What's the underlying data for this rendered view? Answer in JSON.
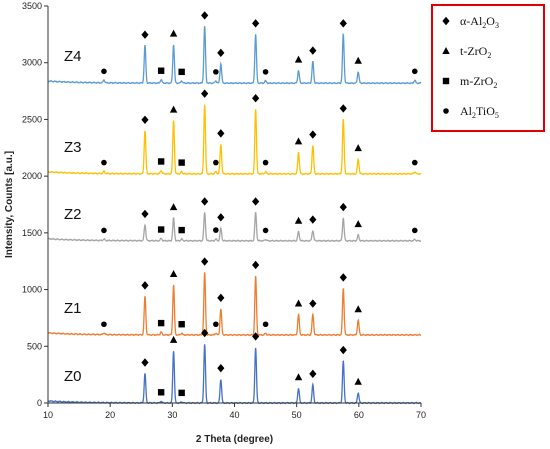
{
  "chart_data": {
    "type": "line",
    "xlabel": "2 Theta (degree)",
    "ylabel": "Intensity, Counts [a.u.]",
    "xlim": [
      10,
      70
    ],
    "ylim": [
      0,
      3500
    ],
    "xticks": [
      "10",
      "20",
      "30",
      "40",
      "50",
      "60",
      "70"
    ],
    "yticks": [
      "0",
      "500",
      "1000",
      "1500",
      "2000",
      "2500",
      "3000",
      "3500"
    ],
    "grid": false,
    "legend_position": "top-right",
    "legend": [
      {
        "symbol": "diamond",
        "base": "α-Al",
        "sub1": "2",
        "mid": "O",
        "sub2": "3"
      },
      {
        "symbol": "triangle",
        "base": "t-ZrO",
        "sub1": "2",
        "mid": "",
        "sub2": ""
      },
      {
        "symbol": "square",
        "base": "m-ZrO",
        "sub1": "2",
        "mid": "",
        "sub2": ""
      },
      {
        "symbol": "circle",
        "base": "Al",
        "sub1": "2",
        "mid": "TiO",
        "sub2": "5"
      }
    ],
    "series": [
      {
        "name": "Z0",
        "color": "#4472C4",
        "baseline": 0,
        "peaks": [
          {
            "x": 25.6,
            "h": 260,
            "m": "diamond"
          },
          {
            "x": 28.2,
            "h": 15,
            "m": "square"
          },
          {
            "x": 30.2,
            "h": 460,
            "m": "triangle"
          },
          {
            "x": 31.5,
            "h": 10,
            "m": "square"
          },
          {
            "x": 35.2,
            "h": 520,
            "m": "diamond"
          },
          {
            "x": 37.8,
            "h": 210,
            "m": "diamond"
          },
          {
            "x": 43.4,
            "h": 490,
            "m": "diamond"
          },
          {
            "x": 50.3,
            "h": 130,
            "m": "triangle"
          },
          {
            "x": 52.6,
            "h": 160,
            "m": "diamond"
          },
          {
            "x": 57.5,
            "h": 370,
            "m": "diamond"
          },
          {
            "x": 59.9,
            "h": 90,
            "m": "triangle"
          }
        ]
      },
      {
        "name": "Z1",
        "color": "#ED7D31",
        "baseline": 600,
        "peaks": [
          {
            "x": 19.0,
            "h": 15,
            "m": "circle"
          },
          {
            "x": 25.6,
            "h": 340,
            "m": "diamond"
          },
          {
            "x": 28.2,
            "h": 25,
            "m": "square"
          },
          {
            "x": 30.2,
            "h": 440,
            "m": "triangle"
          },
          {
            "x": 31.5,
            "h": 15,
            "m": "square"
          },
          {
            "x": 35.2,
            "h": 550,
            "m": "diamond"
          },
          {
            "x": 37.0,
            "h": 15,
            "m": "circle"
          },
          {
            "x": 37.8,
            "h": 230,
            "m": "diamond"
          },
          {
            "x": 43.4,
            "h": 520,
            "m": "diamond"
          },
          {
            "x": 45.0,
            "h": 15,
            "m": "circle"
          },
          {
            "x": 50.3,
            "h": 180,
            "m": "triangle"
          },
          {
            "x": 52.6,
            "h": 180,
            "m": "diamond"
          },
          {
            "x": 57.5,
            "h": 410,
            "m": "diamond"
          },
          {
            "x": 59.9,
            "h": 130,
            "m": "triangle"
          }
        ]
      },
      {
        "name": "Z2",
        "color": "#A5A5A5",
        "baseline": 1430,
        "peaks": [
          {
            "x": 19.0,
            "h": 12,
            "m": "circle"
          },
          {
            "x": 25.6,
            "h": 140,
            "m": "diamond"
          },
          {
            "x": 28.2,
            "h": 20,
            "m": "square"
          },
          {
            "x": 30.2,
            "h": 200,
            "m": "triangle"
          },
          {
            "x": 31.5,
            "h": 15,
            "m": "square"
          },
          {
            "x": 35.2,
            "h": 250,
            "m": "diamond"
          },
          {
            "x": 37.0,
            "h": 15,
            "m": "circle"
          },
          {
            "x": 37.8,
            "h": 110,
            "m": "diamond"
          },
          {
            "x": 43.4,
            "h": 250,
            "m": "diamond"
          },
          {
            "x": 45.0,
            "h": 12,
            "m": "circle"
          },
          {
            "x": 50.3,
            "h": 80,
            "m": "triangle"
          },
          {
            "x": 52.6,
            "h": 90,
            "m": "diamond"
          },
          {
            "x": 57.5,
            "h": 200,
            "m": "diamond"
          },
          {
            "x": 59.9,
            "h": 50,
            "m": "triangle"
          },
          {
            "x": 69.0,
            "h": 12,
            "m": "circle"
          }
        ]
      },
      {
        "name": "Z3",
        "color": "#FFC000",
        "baseline": 2020,
        "peaks": [
          {
            "x": 19.0,
            "h": 20,
            "m": "circle"
          },
          {
            "x": 25.6,
            "h": 380,
            "m": "diamond"
          },
          {
            "x": 28.2,
            "h": 30,
            "m": "square"
          },
          {
            "x": 30.2,
            "h": 470,
            "m": "triangle"
          },
          {
            "x": 31.5,
            "h": 20,
            "m": "square"
          },
          {
            "x": 35.2,
            "h": 610,
            "m": "diamond"
          },
          {
            "x": 37.0,
            "h": 20,
            "m": "circle"
          },
          {
            "x": 37.8,
            "h": 260,
            "m": "diamond"
          },
          {
            "x": 43.4,
            "h": 570,
            "m": "diamond"
          },
          {
            "x": 45.0,
            "h": 20,
            "m": "circle"
          },
          {
            "x": 50.3,
            "h": 190,
            "m": "triangle"
          },
          {
            "x": 52.6,
            "h": 250,
            "m": "diamond"
          },
          {
            "x": 57.5,
            "h": 480,
            "m": "diamond"
          },
          {
            "x": 59.9,
            "h": 130,
            "m": "triangle"
          },
          {
            "x": 69.0,
            "h": 20,
            "m": "circle"
          }
        ]
      },
      {
        "name": "Z4",
        "color": "#5B9BD5",
        "baseline": 2820,
        "peaks": [
          {
            "x": 19.0,
            "h": 25,
            "m": "circle"
          },
          {
            "x": 25.6,
            "h": 330,
            "m": "diamond"
          },
          {
            "x": 28.2,
            "h": 30,
            "m": "square"
          },
          {
            "x": 30.2,
            "h": 340,
            "m": "triangle"
          },
          {
            "x": 31.5,
            "h": 20,
            "m": "square"
          },
          {
            "x": 35.2,
            "h": 500,
            "m": "diamond"
          },
          {
            "x": 37.0,
            "h": 20,
            "m": "circle"
          },
          {
            "x": 37.8,
            "h": 170,
            "m": "diamond"
          },
          {
            "x": 43.4,
            "h": 430,
            "m": "diamond"
          },
          {
            "x": 45.0,
            "h": 20,
            "m": "circle"
          },
          {
            "x": 50.3,
            "h": 110,
            "m": "triangle"
          },
          {
            "x": 52.6,
            "h": 190,
            "m": "diamond"
          },
          {
            "x": 57.5,
            "h": 430,
            "m": "diamond"
          },
          {
            "x": 59.9,
            "h": 100,
            "m": "triangle"
          },
          {
            "x": 69.0,
            "h": 25,
            "m": "circle"
          }
        ]
      }
    ]
  }
}
